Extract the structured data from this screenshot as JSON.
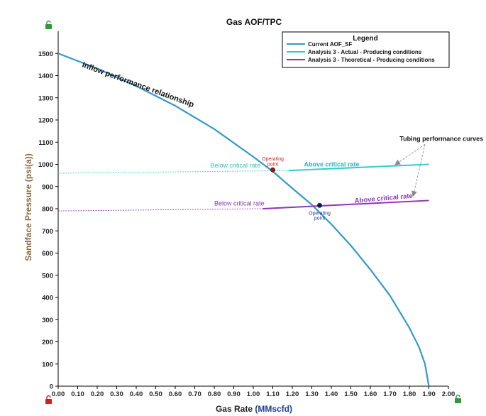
{
  "chart_data": {
    "type": "line",
    "title": "Gas AOF/TPC",
    "xlabel": "Gas Rate",
    "xlabel_unit": "(MMscfd)",
    "ylabel": "Sandface Pressure (psi(a))",
    "xlim": [
      0,
      2.0
    ],
    "ylim": [
      0,
      1600
    ],
    "x_ticks": [
      "0.00",
      "0.10",
      "0.20",
      "0.30",
      "0.40",
      "0.50",
      "0.60",
      "0.70",
      "0.80",
      "0.90",
      "1.00",
      "1.10",
      "1.20",
      "1.30",
      "1.40",
      "1.50",
      "1.60",
      "1.70",
      "1.80",
      "1.90",
      "2.00"
    ],
    "y_ticks": [
      "0",
      "100",
      "200",
      "300",
      "400",
      "500",
      "600",
      "700",
      "800",
      "900",
      "1000",
      "1100",
      "1200",
      "1300",
      "1400",
      "1500"
    ],
    "grid": false,
    "legend": {
      "title": "Legend",
      "position": "top-right",
      "entries": [
        {
          "label": "Current AOF_SF",
          "color": "#3399cc"
        },
        {
          "label": "Analysis 3 - Actual - Producing conditions",
          "color": "#33cccc"
        },
        {
          "label": "Analysis 3 - Theoretical - Producing conditions",
          "color": "#8e35b6"
        }
      ]
    },
    "series": [
      {
        "name": "Current AOF_SF",
        "color": "#3399cc",
        "x": [
          0.0,
          0.2,
          0.4,
          0.6,
          0.8,
          1.0,
          1.1,
          1.2,
          1.3,
          1.4,
          1.5,
          1.6,
          1.7,
          1.8,
          1.85,
          1.88,
          1.9
        ],
        "y": [
          1500,
          1432,
          1353,
          1264,
          1159,
          1034,
          968,
          892,
          818,
          730,
          634,
          526,
          409,
          263,
          175,
          100,
          0
        ]
      },
      {
        "name": "Analysis 3 - Actual - Producing conditions",
        "color": "#33cccc",
        "x": [
          0.0,
          1.18,
          1.9
        ],
        "y": [
          960,
          972,
          1000
        ],
        "solid_from_x": 1.18
      },
      {
        "name": "Analysis 3 - Theoretical - Producing conditions",
        "color": "#8e35b6",
        "x": [
          0.0,
          1.05,
          1.9
        ],
        "y": [
          790,
          800,
          837
        ],
        "solid_from_x": 1.05
      }
    ],
    "annotations": [
      {
        "text": "Inflow performance relationship",
        "x": 0.12,
        "y": 1440,
        "color": "#111111",
        "rotate": 20,
        "size": 11
      },
      {
        "text": "Below critical rate",
        "x": 0.78,
        "y": 985,
        "color": "#33bbcc",
        "size": 9
      },
      {
        "text": "Above critical rate",
        "x": 1.26,
        "y": 990,
        "color": "#22b8d0",
        "size": 9,
        "bold": true
      },
      {
        "text": "Below critical rate",
        "x": 0.8,
        "y": 815,
        "color": "#8e35b6",
        "size": 9
      },
      {
        "text": "Above critical rate",
        "x": 1.52,
        "y": 826,
        "color": "#8e35b6",
        "size": 9.5,
        "bold": true,
        "rotate": -5
      },
      {
        "text": "Tubing performance curves",
        "x": 1.75,
        "y": 1105,
        "color": "#111111",
        "size": 9,
        "bold": true
      },
      {
        "text": "Operating",
        "x": 1.1,
        "y": 1018,
        "color": "#cc2222",
        "size": 7
      },
      {
        "text": "point",
        "x": 1.1,
        "y": 993,
        "color": "#cc2222",
        "size": 7
      },
      {
        "text": "Operating",
        "x": 1.34,
        "y": 773,
        "color": "#1f3d99",
        "size": 7
      },
      {
        "text": "point",
        "x": 1.34,
        "y": 750,
        "color": "#1f3d99",
        "size": 7
      }
    ],
    "points": [
      {
        "name": "operating-point-actual",
        "x": 1.1,
        "y": 975,
        "color": "#aa1111"
      },
      {
        "name": "operating-point-theoretical",
        "x": 1.34,
        "y": 815,
        "color": "#0a1a66"
      }
    ],
    "arrows": [
      {
        "from": [
          1.88,
          1090
        ],
        "to": [
          1.73,
          1000
        ]
      },
      {
        "from": [
          1.88,
          1090
        ],
        "to": [
          1.82,
          860
        ]
      }
    ]
  }
}
